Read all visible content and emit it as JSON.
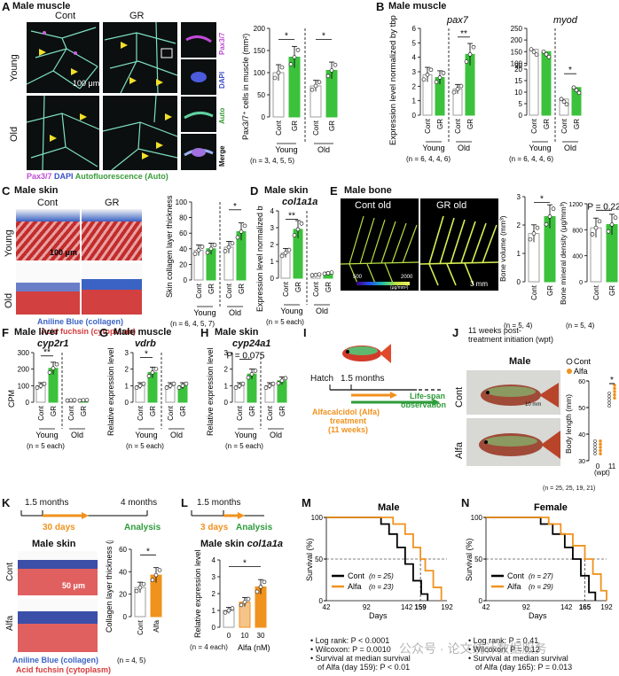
{
  "panels": {
    "A": {
      "letter": "A",
      "title": "Male muscle",
      "col_cont": "Cont",
      "col_gr": "GR",
      "row_young": "Young",
      "row_old": "Old",
      "scale": "100 μm",
      "ch1": "Pax3/7",
      "ch2": "DAPI",
      "ch3": "Auto",
      "ch4": "Merge",
      "legend_pax": "Pax3/7",
      "legend_dapi": "DAPI",
      "legend_auto": "Autofluorescence (Auto)",
      "ylabel": "Pax3/7⁺ cells in muscle (mm²)",
      "groups": [
        "Young",
        "Old"
      ],
      "n": "(n = 3, 4, 5, 5)",
      "sig": [
        "*",
        "*"
      ]
    },
    "B": {
      "letter": "B",
      "title": "Male muscle",
      "gene1": "pax7",
      "gene2": "myod",
      "ylabel": "Expression level normalized by tbp",
      "groups": [
        "Young",
        "Old"
      ],
      "n1": "(n = 6, 4, 4, 6)",
      "n2": "(n = 6, 4, 4, 6)",
      "sig1": "**",
      "sig2": "*"
    },
    "C": {
      "letter": "C",
      "title": "Male skin",
      "col_cont": "Cont",
      "col_gr": "GR",
      "row_young": "Young",
      "row_old": "Old",
      "scale": "100 μm",
      "legend_blue": "Aniline Blue (collagen)",
      "legend_red": "Acid fuchsin (cytoplasm)",
      "ylabel": "Skin collagen layer thickness (μm)",
      "groups": [
        "Young",
        "Old"
      ],
      "n": "(n = 6, 4, 5, 7)",
      "sig": "*"
    },
    "D": {
      "letter": "D",
      "title": "Male skin",
      "gene": "col1a1a",
      "ylabel": "Expression level normalized by tbp",
      "groups": [
        "Young",
        "Old"
      ],
      "n": "(n = 5 each)",
      "sig": "**"
    },
    "E": {
      "letter": "E",
      "title": "Male bone",
      "img1": "Cont old",
      "img2": "GR old",
      "cbar_min": "500",
      "cbar_max": "2000",
      "cbar_unit": "(μg/mm³)",
      "scale": "3 mm",
      "ylabel1": "Bone volume (mm³)",
      "ylabel2": "Bone mineral density (μg/mm³)",
      "n1": "(n = 5, 4)",
      "n2": "(n = 5, 4)",
      "sig": "*",
      "pval": "P = 0.22"
    },
    "F": {
      "letter": "F",
      "title": "Male liver",
      "gene": "cyp2r1",
      "ylabel": "CPM",
      "groups": [
        "Young",
        "Old"
      ],
      "n": "(n = 5 each)",
      "sig": "**"
    },
    "G": {
      "letter": "G",
      "title": "Male muscle",
      "gene": "vdrb",
      "ylabel": "Relative expression level",
      "groups": [
        "Young",
        "Old"
      ],
      "n": "(n = 5 each)",
      "sig": "*"
    },
    "H": {
      "letter": "H",
      "title": "Male skin",
      "gene": "cyp24a1",
      "ylabel": "Relative expression level",
      "groups": [
        "Young",
        "Old"
      ],
      "n": "(n = 5 each)",
      "pval": "P = 0.075"
    },
    "I": {
      "letter": "I",
      "hatch": "Hatch",
      "t1": "1.5 months",
      "treat1": "Alfacalcidol (Alfa)",
      "treat2": "treatment",
      "treat3": "(11 weeks)",
      "obs1": "Life-span",
      "obs2": "observation"
    },
    "J": {
      "letter": "J",
      "title1": "11 weeks post-",
      "title2": "treatment initiation (wpt)",
      "sex": "Male",
      "row1": "Cont",
      "row2": "Alfa",
      "scale": "10 mm",
      "legend_cont": "Cont",
      "legend_alfa": "Alfa",
      "ylabel": "Body length (mm)",
      "xlabel": "(wpt)",
      "n": "(n = 25, 25, 19, 21)",
      "sig": "*"
    },
    "K": {
      "letter": "K",
      "t1": "1.5 months",
      "t2": "4 months",
      "treat": "30 days",
      "analysis": "Analysis",
      "title": "Male skin",
      "row1": "Cont",
      "row2": "Alfa",
      "scale": "50 μm",
      "legend_blue": "Aniline Blue (collagen)",
      "legend_red": "Acid fuchsin (cytoplasm)",
      "ylabel": "Collagen layer thickness (μm)",
      "n": "(n = 4, 5)",
      "sig": "*"
    },
    "L": {
      "letter": "L",
      "t1": "1.5 months",
      "treat": "3 days",
      "analysis": "Analysis",
      "title": "Male skin",
      "gene": "col1a1a",
      "ylabel": "Relative expression level",
      "xlabel": "Alfa (nM)",
      "n": "(n = 4 each)",
      "sig": "*"
    },
    "M": {
      "letter": "M",
      "title": "Male",
      "ylabel": "Survival (%)",
      "xlabel": "Days",
      "legend_cont": "Cont",
      "legend_cont_n": "(n = 25)",
      "legend_alfa": "Alfa",
      "legend_alfa_n": "(n = 23)",
      "median": "159",
      "notes": [
        "• Log rank: P < 0.0001",
        "• Wilcoxon: P = 0.0010",
        "• Survival at median survival",
        "of Alfa (day 159): P < 0.01"
      ]
    },
    "N": {
      "letter": "N",
      "title": "Female",
      "ylabel": "Survival (%)",
      "xlabel": "Days",
      "legend_cont": "Cont",
      "legend_cont_n": "(n = 27)",
      "legend_alfa": "Alfa",
      "legend_alfa_n": "(n = 29)",
      "median": "165",
      "notes": [
        "• Log rank: P = 0.41",
        "• Wilcoxon: P = 0.12",
        "• Survival at median survival",
        "of Alfa (day 165): P = 0.013"
      ]
    },
    "watermark": "公众号 · 论文统计数据服务"
  },
  "colors": {
    "cont": "#9e9e9e",
    "green": "#3cc13c",
    "orange": "#f0921e",
    "black": "#000000",
    "blue_stain": "#3b63c4",
    "red_stain": "#d43a3a",
    "green_text": "#3a9c3a"
  },
  "chart_data": [
    {
      "panel": "A",
      "type": "bar",
      "categories": [
        "Young Cont",
        "Young GR",
        "Old Cont",
        "Old GR"
      ],
      "values": [
        100,
        135,
        70,
        105
      ],
      "ylim": [
        0,
        200
      ],
      "yticks": [
        0,
        50,
        100,
        150,
        200
      ],
      "ylabel": "Pax3/7⁺ cells in muscle (mm²)"
    },
    {
      "panel": "B-pax7",
      "type": "bar",
      "categories": [
        "Young Cont",
        "Young GR",
        "Old Cont",
        "Old GR"
      ],
      "values": [
        2.8,
        2.6,
        1.8,
        4.2
      ],
      "ylim": [
        0,
        6
      ],
      "yticks": [
        0,
        1,
        2,
        3,
        4,
        5,
        6
      ]
    },
    {
      "panel": "B-myod",
      "type": "bar",
      "categories": [
        "Young Cont",
        "Young GR",
        "Old Cont",
        "Old GR"
      ],
      "values": [
        160,
        150,
        7,
        12
      ],
      "ylim": [
        0,
        250
      ],
      "yticks": [
        0,
        5,
        10,
        15,
        20,
        90,
        100,
        150,
        200,
        250
      ],
      "broken_axis": [
        20,
        90
      ]
    },
    {
      "panel": "C",
      "type": "bar",
      "categories": [
        "Young Cont",
        "Young GR",
        "Old Cont",
        "Old GR"
      ],
      "values": [
        38,
        40,
        42,
        62
      ],
      "ylim": [
        0,
        100
      ],
      "yticks": [
        0,
        20,
        40,
        60,
        80,
        100
      ],
      "ylabel": "Skin collagen layer thickness (μm)"
    },
    {
      "panel": "D",
      "type": "bar",
      "categories": [
        "Young Cont",
        "Young GR",
        "Old Cont",
        "Old GR"
      ],
      "values": [
        1.5,
        2.9,
        0.2,
        0.3
      ],
      "ylim": [
        0,
        4
      ],
      "yticks": [
        0,
        1,
        2,
        3,
        4
      ]
    },
    {
      "panel": "E-volume",
      "type": "bar",
      "categories": [
        "Cont",
        "GR"
      ],
      "values": [
        1.7,
        2.3
      ],
      "ylim": [
        0,
        3
      ],
      "yticks": [
        0,
        1,
        2,
        3
      ],
      "ylabel": "Bone volume (mm³)"
    },
    {
      "panel": "E-density",
      "type": "bar",
      "categories": [
        "Cont",
        "GR"
      ],
      "values": [
        830,
        880
      ],
      "ylim": [
        0,
        1200
      ],
      "yticks": [
        0,
        400,
        800,
        1200
      ],
      "ylabel": "Bone mineral density (μg/mm³)"
    },
    {
      "panel": "F",
      "type": "bar",
      "categories": [
        "Young Cont",
        "Young GR",
        "Old Cont",
        "Old GR"
      ],
      "values": [
        100,
        205,
        12,
        12
      ],
      "ylim": [
        0,
        300
      ],
      "yticks": [
        0,
        100,
        200,
        300
      ],
      "ylabel": "CPM"
    },
    {
      "panel": "G",
      "type": "bar",
      "categories": [
        "Young Cont",
        "Young GR",
        "Old Cont",
        "Old GR"
      ],
      "values": [
        1.0,
        1.8,
        1.0,
        1.0
      ],
      "ylim": [
        0,
        3
      ],
      "yticks": [
        0,
        1,
        2,
        3
      ],
      "ylabel": "Relative expression level"
    },
    {
      "panel": "H",
      "type": "bar",
      "categories": [
        "Young Cont",
        "Young GR",
        "Old Cont",
        "Old GR"
      ],
      "values": [
        1.0,
        1.7,
        1.0,
        1.3
      ],
      "ylim": [
        0,
        3
      ],
      "yticks": [
        0,
        1,
        2,
        3
      ],
      "ylabel": "Relative expression level"
    },
    {
      "panel": "J",
      "type": "scatter",
      "series": [
        {
          "name": "Cont",
          "x": [
            0,
            11
          ],
          "y": [
            35,
            53
          ]
        },
        {
          "name": "Alfa",
          "x": [
            0,
            11
          ],
          "y": [
            35,
            56
          ]
        }
      ],
      "xticks": [
        "0",
        "11"
      ],
      "ylim": [
        30,
        60
      ],
      "yticks": [
        30,
        40,
        50,
        60
      ],
      "ylabel": "Body length (mm)"
    },
    {
      "panel": "K",
      "type": "bar",
      "categories": [
        "Cont",
        "Alfa"
      ],
      "values": [
        26,
        37
      ],
      "ylim": [
        0,
        60
      ],
      "yticks": [
        0,
        20,
        40,
        60
      ],
      "ylabel": "Collagen layer thickness (μm)"
    },
    {
      "panel": "L",
      "type": "bar",
      "categories": [
        "0",
        "10",
        "30"
      ],
      "values": [
        1.0,
        1.5,
        2.4
      ],
      "ylim": [
        0,
        4
      ],
      "yticks": [
        0,
        1,
        2,
        3,
        4
      ],
      "xlabel": "Alfa (nM)",
      "ylabel": "Relative expression level"
    },
    {
      "panel": "M",
      "type": "line",
      "xlim": [
        42,
        192
      ],
      "xticks": [
        42,
        92,
        142,
        192
      ],
      "ylim": [
        0,
        100
      ],
      "yticks": [
        0,
        50,
        100
      ],
      "xlabel": "Days",
      "ylabel": "Survival (%)",
      "series": [
        {
          "name": "Cont",
          "x": [
            42,
            100,
            110,
            120,
            130,
            140,
            150,
            160,
            168
          ],
          "y": [
            100,
            100,
            92,
            80,
            64,
            44,
            24,
            8,
            0
          ]
        },
        {
          "name": "Alfa",
          "x": [
            42,
            110,
            125,
            140,
            150,
            159,
            165,
            175,
            185
          ],
          "y": [
            100,
            100,
            92,
            80,
            64,
            50,
            36,
            16,
            0
          ]
        }
      ]
    },
    {
      "panel": "N",
      "type": "line",
      "xlim": [
        42,
        192
      ],
      "xticks": [
        42,
        92,
        142,
        192
      ],
      "ylim": [
        0,
        100
      ],
      "yticks": [
        0,
        50,
        100
      ],
      "xlabel": "Days",
      "ylabel": "Survival (%)",
      "series": [
        {
          "name": "Cont",
          "x": [
            42,
            95,
            110,
            125,
            140,
            150,
            160,
            170,
            178
          ],
          "y": [
            100,
            100,
            92,
            80,
            64,
            50,
            30,
            10,
            0
          ]
        },
        {
          "name": "Alfa",
          "x": [
            42,
            100,
            120,
            135,
            150,
            165,
            175,
            185,
            192
          ],
          "y": [
            100,
            100,
            92,
            80,
            66,
            50,
            32,
            12,
            0
          ]
        }
      ]
    }
  ]
}
